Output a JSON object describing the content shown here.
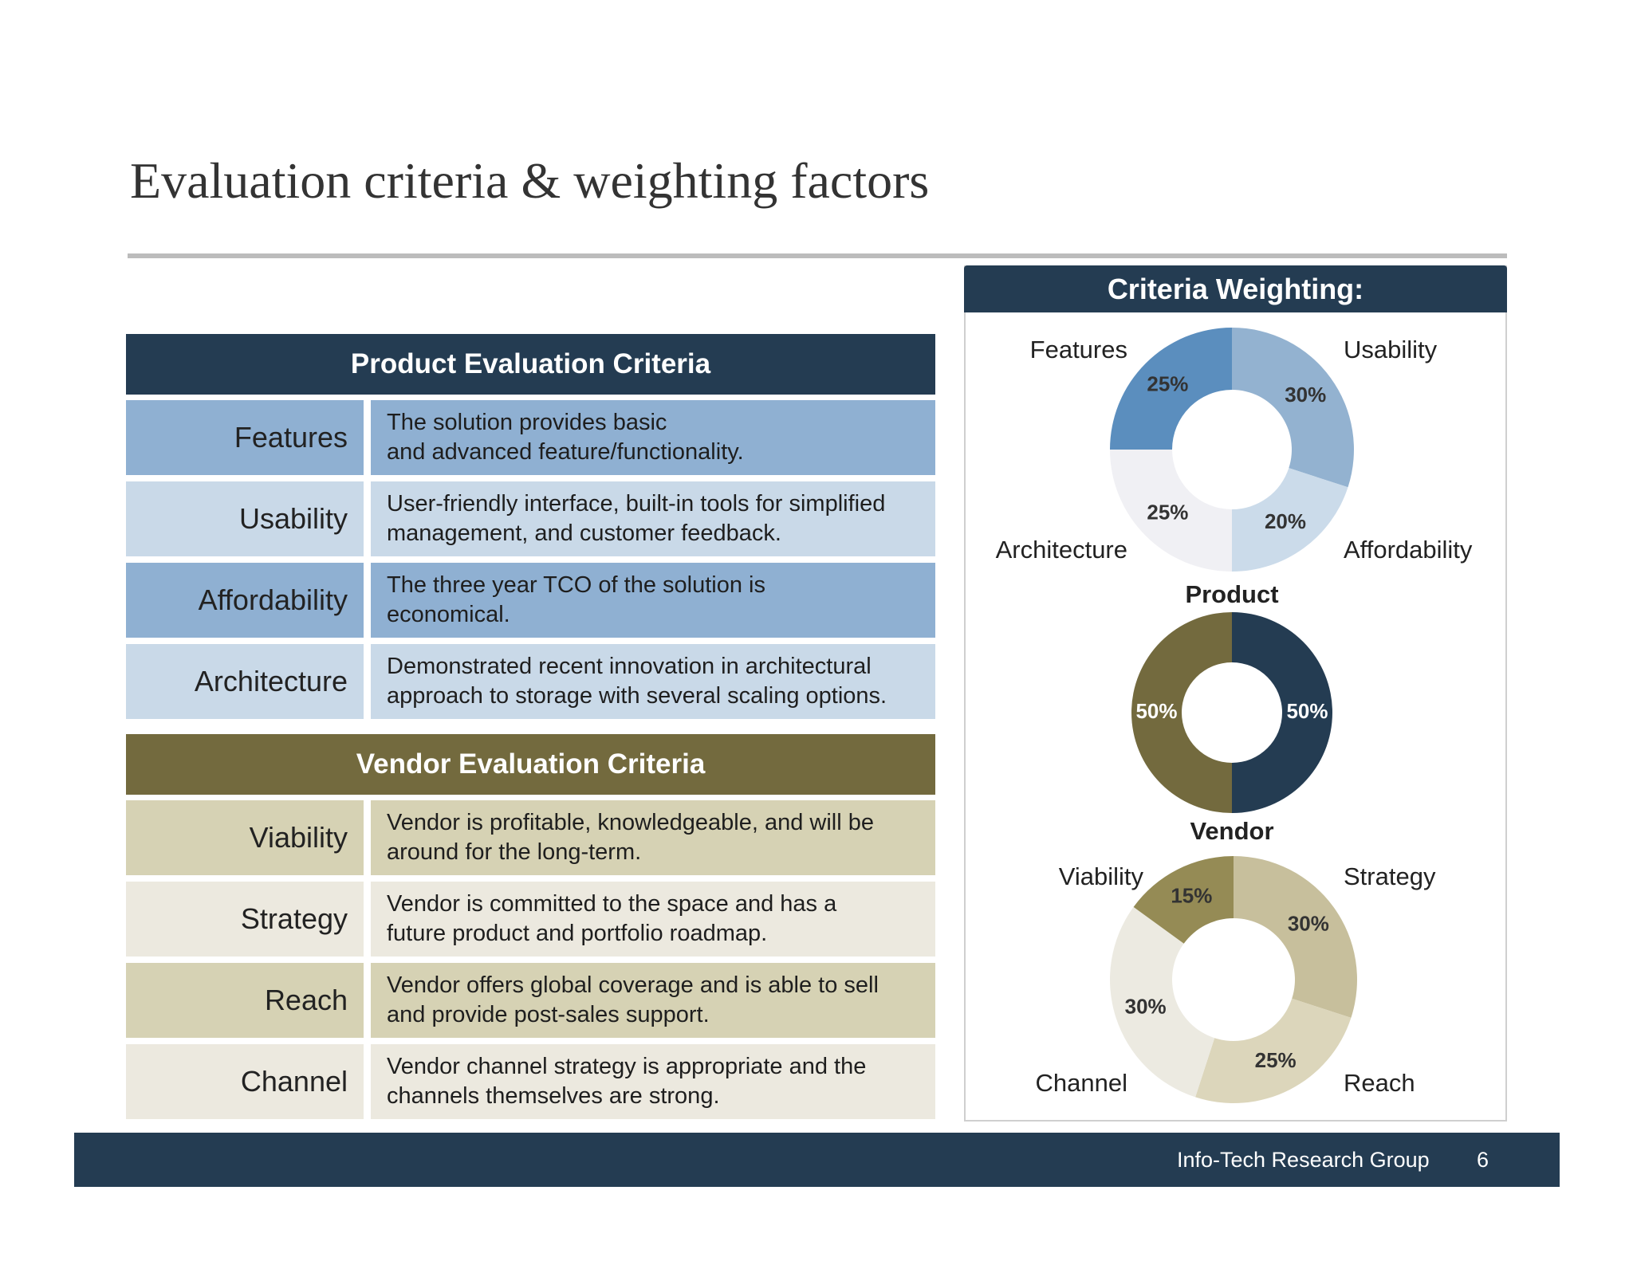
{
  "title": "Evaluation criteria & weighting factors",
  "product_section": {
    "header": "Product Evaluation Criteria",
    "header_color": "#243c52",
    "rows": [
      {
        "name": "Features",
        "lines": [
          "The solution provides basic",
          "and advanced feature/functionality."
        ],
        "name_color": "#8fb0d2",
        "desc_color": "#8fb0d2"
      },
      {
        "name": "Usability",
        "lines": [
          "User-friendly interface, built-in tools for simplified",
          "management, and customer feedback."
        ],
        "name_color": "#c9d9e8",
        "desc_color": "#c9d9e8"
      },
      {
        "name": "Affordability",
        "lines": [
          "The three year TCO of the solution is",
          "economical."
        ],
        "name_color": "#8fb0d2",
        "desc_color": "#8fb0d2"
      },
      {
        "name": "Architecture",
        "lines": [
          "Demonstrated recent innovation in architectural",
          "approach to storage with several scaling options."
        ],
        "name_color": "#c9d9e8",
        "desc_color": "#c9d9e8"
      }
    ]
  },
  "vendor_section": {
    "header": "Vendor Evaluation Criteria",
    "header_color": "#736a3e",
    "rows": [
      {
        "name": "Viability",
        "lines": [
          "Vendor is profitable, knowledgeable, and will be",
          "around for the long-term."
        ],
        "name_color": "#d6d2b4",
        "desc_color": "#d6d2b4"
      },
      {
        "name": "Strategy",
        "lines": [
          "Vendor is committed to the space and has a",
          "future product and portfolio roadmap."
        ],
        "name_color": "#ece9df",
        "desc_color": "#ece9df"
      },
      {
        "name": "Reach",
        "lines": [
          "Vendor offers global coverage and is able to sell",
          "and provide post-sales support."
        ],
        "name_color": "#d6d2b4",
        "desc_color": "#d6d2b4"
      },
      {
        "name": "Channel",
        "lines": [
          "Vendor channel strategy is appropriate and the",
          "channels themselves are strong."
        ],
        "name_color": "#ece9df",
        "desc_color": "#ece9df"
      }
    ]
  },
  "weighting_panel": {
    "header": "Criteria Weighting:",
    "product_title": "Product",
    "vendor_title": "Vendor"
  },
  "chart_data": [
    {
      "type": "pie",
      "variant": "donut",
      "categories": [
        "Usability",
        "Affordability",
        "Architecture",
        "Features"
      ],
      "values": [
        30,
        20,
        25,
        25
      ],
      "value_labels": [
        "30%",
        "20%",
        "25%",
        "25%"
      ],
      "colors": [
        "#93b2d0",
        "#cbdbea",
        "#f0f0f4",
        "#5b8ebe"
      ]
    },
    {
      "type": "pie",
      "variant": "donut",
      "categories": [
        "Product",
        "Vendor"
      ],
      "values": [
        50,
        50
      ],
      "value_labels": [
        "50%",
        "50%"
      ],
      "colors": [
        "#243c52",
        "#736a3e"
      ]
    },
    {
      "type": "pie",
      "variant": "donut",
      "categories": [
        "Strategy",
        "Reach",
        "Channel",
        "Viability"
      ],
      "values": [
        30,
        25,
        30,
        15
      ],
      "value_labels": [
        "30%",
        "25%",
        "30%",
        "15%"
      ],
      "colors": [
        "#c7bf9c",
        "#dcd6bb",
        "#eceae1",
        "#958b55"
      ]
    }
  ],
  "footer": {
    "org": "Info-Tech Research Group",
    "page": "6",
    "color": "#243c52"
  }
}
